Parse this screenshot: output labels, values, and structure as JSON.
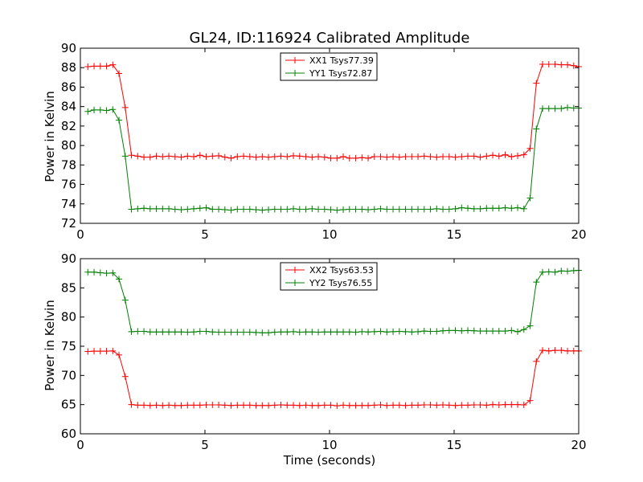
{
  "chart_data": {
    "title": "GL24, ID:116924 Calibrated Amplitude",
    "xlabel": "Time (seconds)",
    "xlim": [
      0,
      20
    ],
    "x_ticks": [
      0,
      5,
      10,
      15,
      20
    ],
    "x": [
      0.3,
      0.55,
      0.8,
      1.05,
      1.3,
      1.55,
      1.8,
      2.05,
      2.3,
      2.55,
      2.8,
      3.05,
      3.3,
      3.55,
      3.8,
      4.05,
      4.3,
      4.55,
      4.8,
      5.05,
      5.3,
      5.55,
      5.8,
      6.05,
      6.3,
      6.55,
      6.8,
      7.05,
      7.3,
      7.55,
      7.8,
      8.05,
      8.3,
      8.55,
      8.8,
      9.05,
      9.3,
      9.55,
      9.8,
      10.05,
      10.3,
      10.55,
      10.8,
      11.05,
      11.3,
      11.55,
      11.8,
      12.05,
      12.3,
      12.55,
      12.8,
      13.05,
      13.3,
      13.55,
      13.8,
      14.05,
      14.3,
      14.55,
      14.8,
      15.05,
      15.3,
      15.55,
      15.8,
      16.05,
      16.3,
      16.55,
      16.8,
      17.05,
      17.3,
      17.55,
      17.8,
      18.05,
      18.3,
      18.55,
      18.8,
      19.05,
      19.3,
      19.55,
      19.8,
      20.0
    ],
    "panels": [
      {
        "type": "line",
        "ylabel": "Power in Kelvin",
        "ylim": [
          72,
          90
        ],
        "y_ticks": [
          72,
          74,
          76,
          78,
          80,
          82,
          84,
          86,
          88,
          90
        ],
        "legend_position": "top-center",
        "series": [
          {
            "name": "XX1 Tsys77.39",
            "color": "#ff0000",
            "values": [
              88.1,
              88.15,
              88.15,
              88.15,
              88.3,
              87.4,
              83.9,
              79.0,
              78.9,
              78.8,
              78.8,
              78.9,
              78.85,
              78.9,
              78.85,
              78.8,
              78.9,
              78.85,
              79.0,
              78.85,
              78.9,
              78.95,
              78.8,
              78.7,
              78.85,
              78.9,
              78.85,
              78.8,
              78.85,
              78.8,
              78.85,
              78.9,
              78.85,
              78.95,
              78.9,
              78.85,
              78.8,
              78.85,
              78.8,
              78.7,
              78.7,
              78.85,
              78.7,
              78.7,
              78.75,
              78.7,
              78.85,
              78.85,
              78.8,
              78.85,
              78.8,
              78.85,
              78.85,
              78.85,
              78.9,
              78.85,
              78.8,
              78.85,
              78.85,
              78.8,
              78.85,
              78.9,
              78.9,
              78.8,
              78.9,
              79.0,
              78.9,
              79.05,
              78.85,
              78.95,
              79.05,
              79.7,
              86.4,
              88.35,
              88.35,
              88.35,
              88.3,
              88.3,
              88.2,
              88.1
            ]
          },
          {
            "name": "YY1 Tsys72.87",
            "color": "#008000",
            "values": [
              83.5,
              83.65,
              83.65,
              83.6,
              83.7,
              82.6,
              78.9,
              73.45,
              73.5,
              73.55,
              73.5,
              73.5,
              73.5,
              73.5,
              73.45,
              73.4,
              73.45,
              73.5,
              73.55,
              73.6,
              73.45,
              73.45,
              73.4,
              73.35,
              73.45,
              73.45,
              73.45,
              73.4,
              73.35,
              73.4,
              73.45,
              73.45,
              73.45,
              73.5,
              73.45,
              73.45,
              73.5,
              73.45,
              73.45,
              73.4,
              73.35,
              73.4,
              73.45,
              73.45,
              73.45,
              73.4,
              73.45,
              73.5,
              73.45,
              73.45,
              73.45,
              73.45,
              73.45,
              73.45,
              73.45,
              73.45,
              73.5,
              73.45,
              73.45,
              73.5,
              73.6,
              73.55,
              73.5,
              73.5,
              73.55,
              73.55,
              73.55,
              73.6,
              73.55,
              73.6,
              73.5,
              74.6,
              81.7,
              83.8,
              83.8,
              83.8,
              83.8,
              83.9,
              83.85,
              83.85
            ]
          }
        ]
      },
      {
        "type": "line",
        "ylabel": "Power in Kelvin",
        "ylim": [
          60,
          90
        ],
        "y_ticks": [
          60,
          65,
          70,
          75,
          80,
          85,
          90
        ],
        "legend_position": "top-center",
        "series": [
          {
            "name": "XX2 Tsys63.53",
            "color": "#ff0000",
            "values": [
              74.1,
              74.15,
              74.15,
              74.15,
              74.2,
              73.5,
              69.8,
              65.0,
              64.9,
              64.9,
              64.85,
              64.9,
              64.85,
              64.9,
              64.85,
              64.85,
              64.9,
              64.9,
              64.9,
              64.95,
              64.95,
              64.95,
              64.9,
              64.85,
              64.9,
              64.9,
              64.9,
              64.85,
              64.85,
              64.85,
              64.9,
              64.95,
              64.9,
              64.9,
              64.85,
              64.9,
              64.85,
              64.85,
              64.9,
              64.9,
              64.8,
              64.9,
              64.85,
              64.85,
              64.85,
              64.85,
              64.9,
              64.95,
              64.85,
              64.9,
              64.9,
              64.85,
              64.9,
              64.9,
              64.95,
              64.95,
              64.9,
              64.95,
              64.9,
              64.85,
              64.9,
              64.9,
              64.95,
              64.95,
              64.9,
              65.0,
              64.95,
              65.0,
              65.0,
              65.0,
              64.95,
              65.7,
              72.4,
              74.3,
              74.2,
              74.3,
              74.3,
              74.2,
              74.2,
              74.2
            ]
          },
          {
            "name": "YY2 Tsys76.55",
            "color": "#008000",
            "values": [
              87.7,
              87.7,
              87.6,
              87.5,
              87.55,
              86.5,
              82.9,
              77.5,
              77.55,
              77.55,
              77.45,
              77.45,
              77.45,
              77.45,
              77.45,
              77.45,
              77.4,
              77.45,
              77.55,
              77.55,
              77.45,
              77.4,
              77.4,
              77.4,
              77.4,
              77.4,
              77.4,
              77.35,
              77.3,
              77.3,
              77.4,
              77.45,
              77.45,
              77.5,
              77.4,
              77.45,
              77.45,
              77.4,
              77.45,
              77.45,
              77.45,
              77.45,
              77.45,
              77.4,
              77.5,
              77.45,
              77.5,
              77.55,
              77.45,
              77.5,
              77.55,
              77.5,
              77.45,
              77.5,
              77.6,
              77.55,
              77.55,
              77.65,
              77.7,
              77.7,
              77.65,
              77.7,
              77.65,
              77.6,
              77.6,
              77.6,
              77.6,
              77.6,
              77.7,
              77.5,
              77.85,
              78.5,
              86.0,
              87.7,
              87.75,
              87.7,
              87.9,
              87.85,
              87.95,
              88.0
            ]
          }
        ]
      }
    ]
  }
}
